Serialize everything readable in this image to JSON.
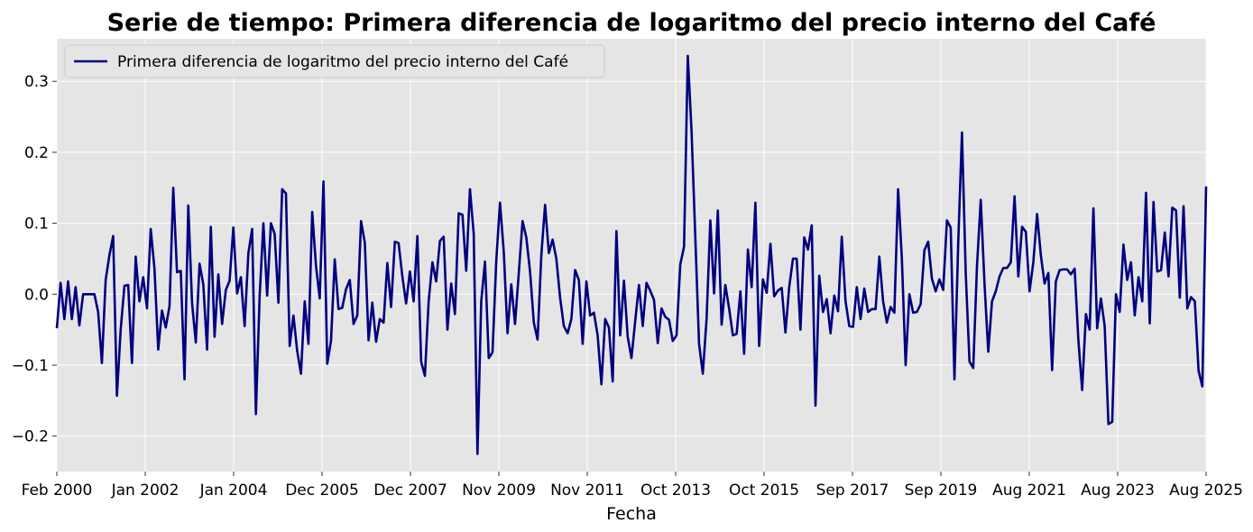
{
  "chart_data": {
    "type": "line",
    "title": "Serie de tiempo: Primera diferencia de logaritmo del precio interno del Café",
    "xlabel": "Fecha",
    "ylabel": "",
    "x_start": "2000-02",
    "x_end": "2025-08",
    "x_frequency": "monthly",
    "xticks": [
      "Feb 2000",
      "Jan 2002",
      "Jan 2004",
      "Dec 2005",
      "Dec 2007",
      "Nov 2009",
      "Nov 2011",
      "Oct 2013",
      "Oct 2015",
      "Sep 2017",
      "Sep 2019",
      "Aug 2021",
      "Aug 2023",
      "Aug 2025"
    ],
    "yticks": [
      -0.2,
      -0.1,
      0.0,
      0.1,
      0.2,
      0.3
    ],
    "ytick_labels": [
      "−0.2",
      "−0.1",
      "0.0",
      "0.1",
      "0.2",
      "0.3"
    ],
    "ylim": [
      -0.25,
      0.36
    ],
    "grid": true,
    "legend_position": "top-left",
    "background_color": "#e5e5e5",
    "line_color": "#000080",
    "series": [
      {
        "name": "Primera diferencia de logaritmo del precio interno del Café",
        "values": [
          -0.048,
          0.016,
          -0.035,
          0.018,
          -0.035,
          0.01,
          -0.044,
          0.0,
          0.0,
          0.0,
          0.0,
          -0.025,
          -0.097,
          0.02,
          0.055,
          0.082,
          -0.143,
          -0.05,
          0.012,
          0.013,
          -0.097,
          0.053,
          -0.01,
          0.024,
          -0.02,
          0.092,
          0.036,
          -0.078,
          -0.023,
          -0.047,
          -0.017,
          0.15,
          0.031,
          0.033,
          -0.12,
          0.125,
          -0.012,
          -0.068,
          0.043,
          0.014,
          -0.078,
          0.095,
          -0.06,
          0.028,
          -0.042,
          0.006,
          0.019,
          0.094,
          0.001,
          0.024,
          -0.045,
          0.058,
          0.092,
          -0.169,
          -0.003,
          0.1,
          -0.002,
          0.1,
          0.085,
          -0.012,
          0.148,
          0.142,
          -0.073,
          -0.03,
          -0.08,
          -0.112,
          -0.01,
          -0.07,
          0.116,
          0.04,
          -0.006,
          0.159,
          -0.098,
          -0.066,
          0.049,
          -0.021,
          -0.019,
          0.007,
          0.02,
          -0.042,
          -0.03,
          0.103,
          0.073,
          -0.065,
          -0.012,
          -0.067,
          -0.035,
          -0.04,
          0.044,
          -0.018,
          0.074,
          0.072,
          0.025,
          -0.013,
          0.032,
          -0.01,
          0.082,
          -0.095,
          -0.115,
          -0.01,
          0.045,
          0.018,
          0.075,
          0.081,
          -0.05,
          0.015,
          -0.028,
          0.114,
          0.112,
          0.033,
          0.148,
          0.085,
          -0.225,
          -0.01,
          0.046,
          -0.09,
          -0.082,
          0.047,
          0.129,
          0.06,
          -0.055,
          0.014,
          -0.042,
          0.03,
          0.103,
          0.08,
          0.032,
          -0.04,
          -0.064,
          0.055,
          0.126,
          0.058,
          0.077,
          0.05,
          -0.005,
          -0.045,
          -0.055,
          -0.035,
          0.034,
          0.02,
          -0.07,
          0.018,
          -0.03,
          -0.026,
          -0.058,
          -0.127,
          -0.035,
          -0.047,
          -0.123,
          0.089,
          -0.058,
          0.019,
          -0.06,
          -0.09,
          -0.038,
          0.013,
          -0.045,
          0.016,
          0.005,
          -0.008,
          -0.069,
          -0.02,
          -0.032,
          -0.036,
          -0.066,
          -0.058,
          0.042,
          0.067,
          0.336,
          0.23,
          0.08,
          -0.07,
          -0.112,
          -0.035,
          0.104,
          0.001,
          0.118,
          -0.043,
          0.013,
          -0.02,
          -0.058,
          -0.056,
          0.004,
          -0.084,
          0.063,
          0.01,
          0.129,
          -0.073,
          0.021,
          0.002,
          0.071,
          -0.003,
          0.005,
          0.009,
          -0.054,
          0.01,
          0.05,
          0.05,
          -0.05,
          0.08,
          0.063,
          0.097,
          -0.157,
          0.026,
          -0.025,
          -0.007,
          -0.055,
          -0.002,
          -0.024,
          0.081,
          -0.01,
          -0.045,
          -0.046,
          0.01,
          -0.035,
          0.008,
          -0.025,
          -0.021,
          -0.021,
          0.053,
          -0.01,
          -0.04,
          -0.018,
          -0.026,
          0.148,
          0.05,
          -0.1,
          0.0,
          -0.026,
          -0.025,
          -0.014,
          0.062,
          0.074,
          0.022,
          0.004,
          0.021,
          0.006,
          0.104,
          0.094,
          -0.12,
          0.072,
          0.228,
          0.03,
          -0.095,
          -0.104,
          0.04,
          0.133,
          0.015,
          -0.081,
          -0.01,
          0.004,
          0.025,
          0.037,
          0.037,
          0.045,
          0.138,
          0.025,
          0.095,
          0.088,
          0.004,
          0.045,
          0.113,
          0.055,
          0.015,
          0.03,
          -0.107,
          0.018,
          0.034,
          0.035,
          0.035,
          0.028,
          0.036,
          -0.065,
          -0.135,
          -0.028,
          -0.05,
          0.121,
          -0.048,
          -0.006,
          -0.045,
          -0.183,
          -0.18,
          0.0,
          -0.025,
          0.07,
          0.02,
          0.045,
          -0.03,
          0.024,
          -0.01,
          0.143,
          -0.041,
          0.13,
          0.032,
          0.034,
          0.087,
          0.025,
          0.122,
          0.118,
          -0.005,
          0.124,
          -0.02,
          -0.004,
          -0.01,
          -0.108,
          -0.13,
          0.152
        ]
      }
    ]
  }
}
